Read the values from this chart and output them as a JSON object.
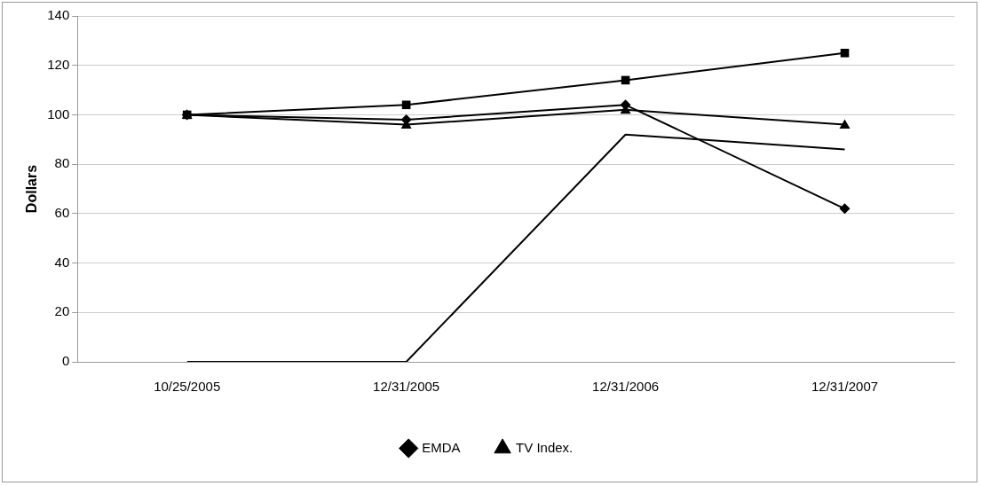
{
  "chart_data": {
    "type": "line",
    "ylabel": "Dollars",
    "categories": [
      "10/25/2005",
      "12/31/2005",
      "12/31/2006",
      "12/31/2007"
    ],
    "ylim": [
      0,
      140
    ],
    "yticks": [
      0,
      20,
      40,
      60,
      80,
      100,
      120,
      140
    ],
    "grid": "y",
    "legend": "bottom",
    "series": [
      {
        "name": "EMDA",
        "color": "#000000",
        "marker": "diamond",
        "values": [
          100,
          98,
          104,
          62
        ]
      },
      {
        "color": "#000000",
        "marker": "square",
        "values": [
          100,
          104,
          114,
          125
        ]
      },
      {
        "name": "TV Index.",
        "color": "#000000",
        "marker": "triangle",
        "values": [
          100,
          96,
          102,
          96
        ]
      },
      {
        "color": "#000000",
        "marker": "none",
        "values": [
          0,
          0,
          92,
          86
        ]
      }
    ]
  }
}
